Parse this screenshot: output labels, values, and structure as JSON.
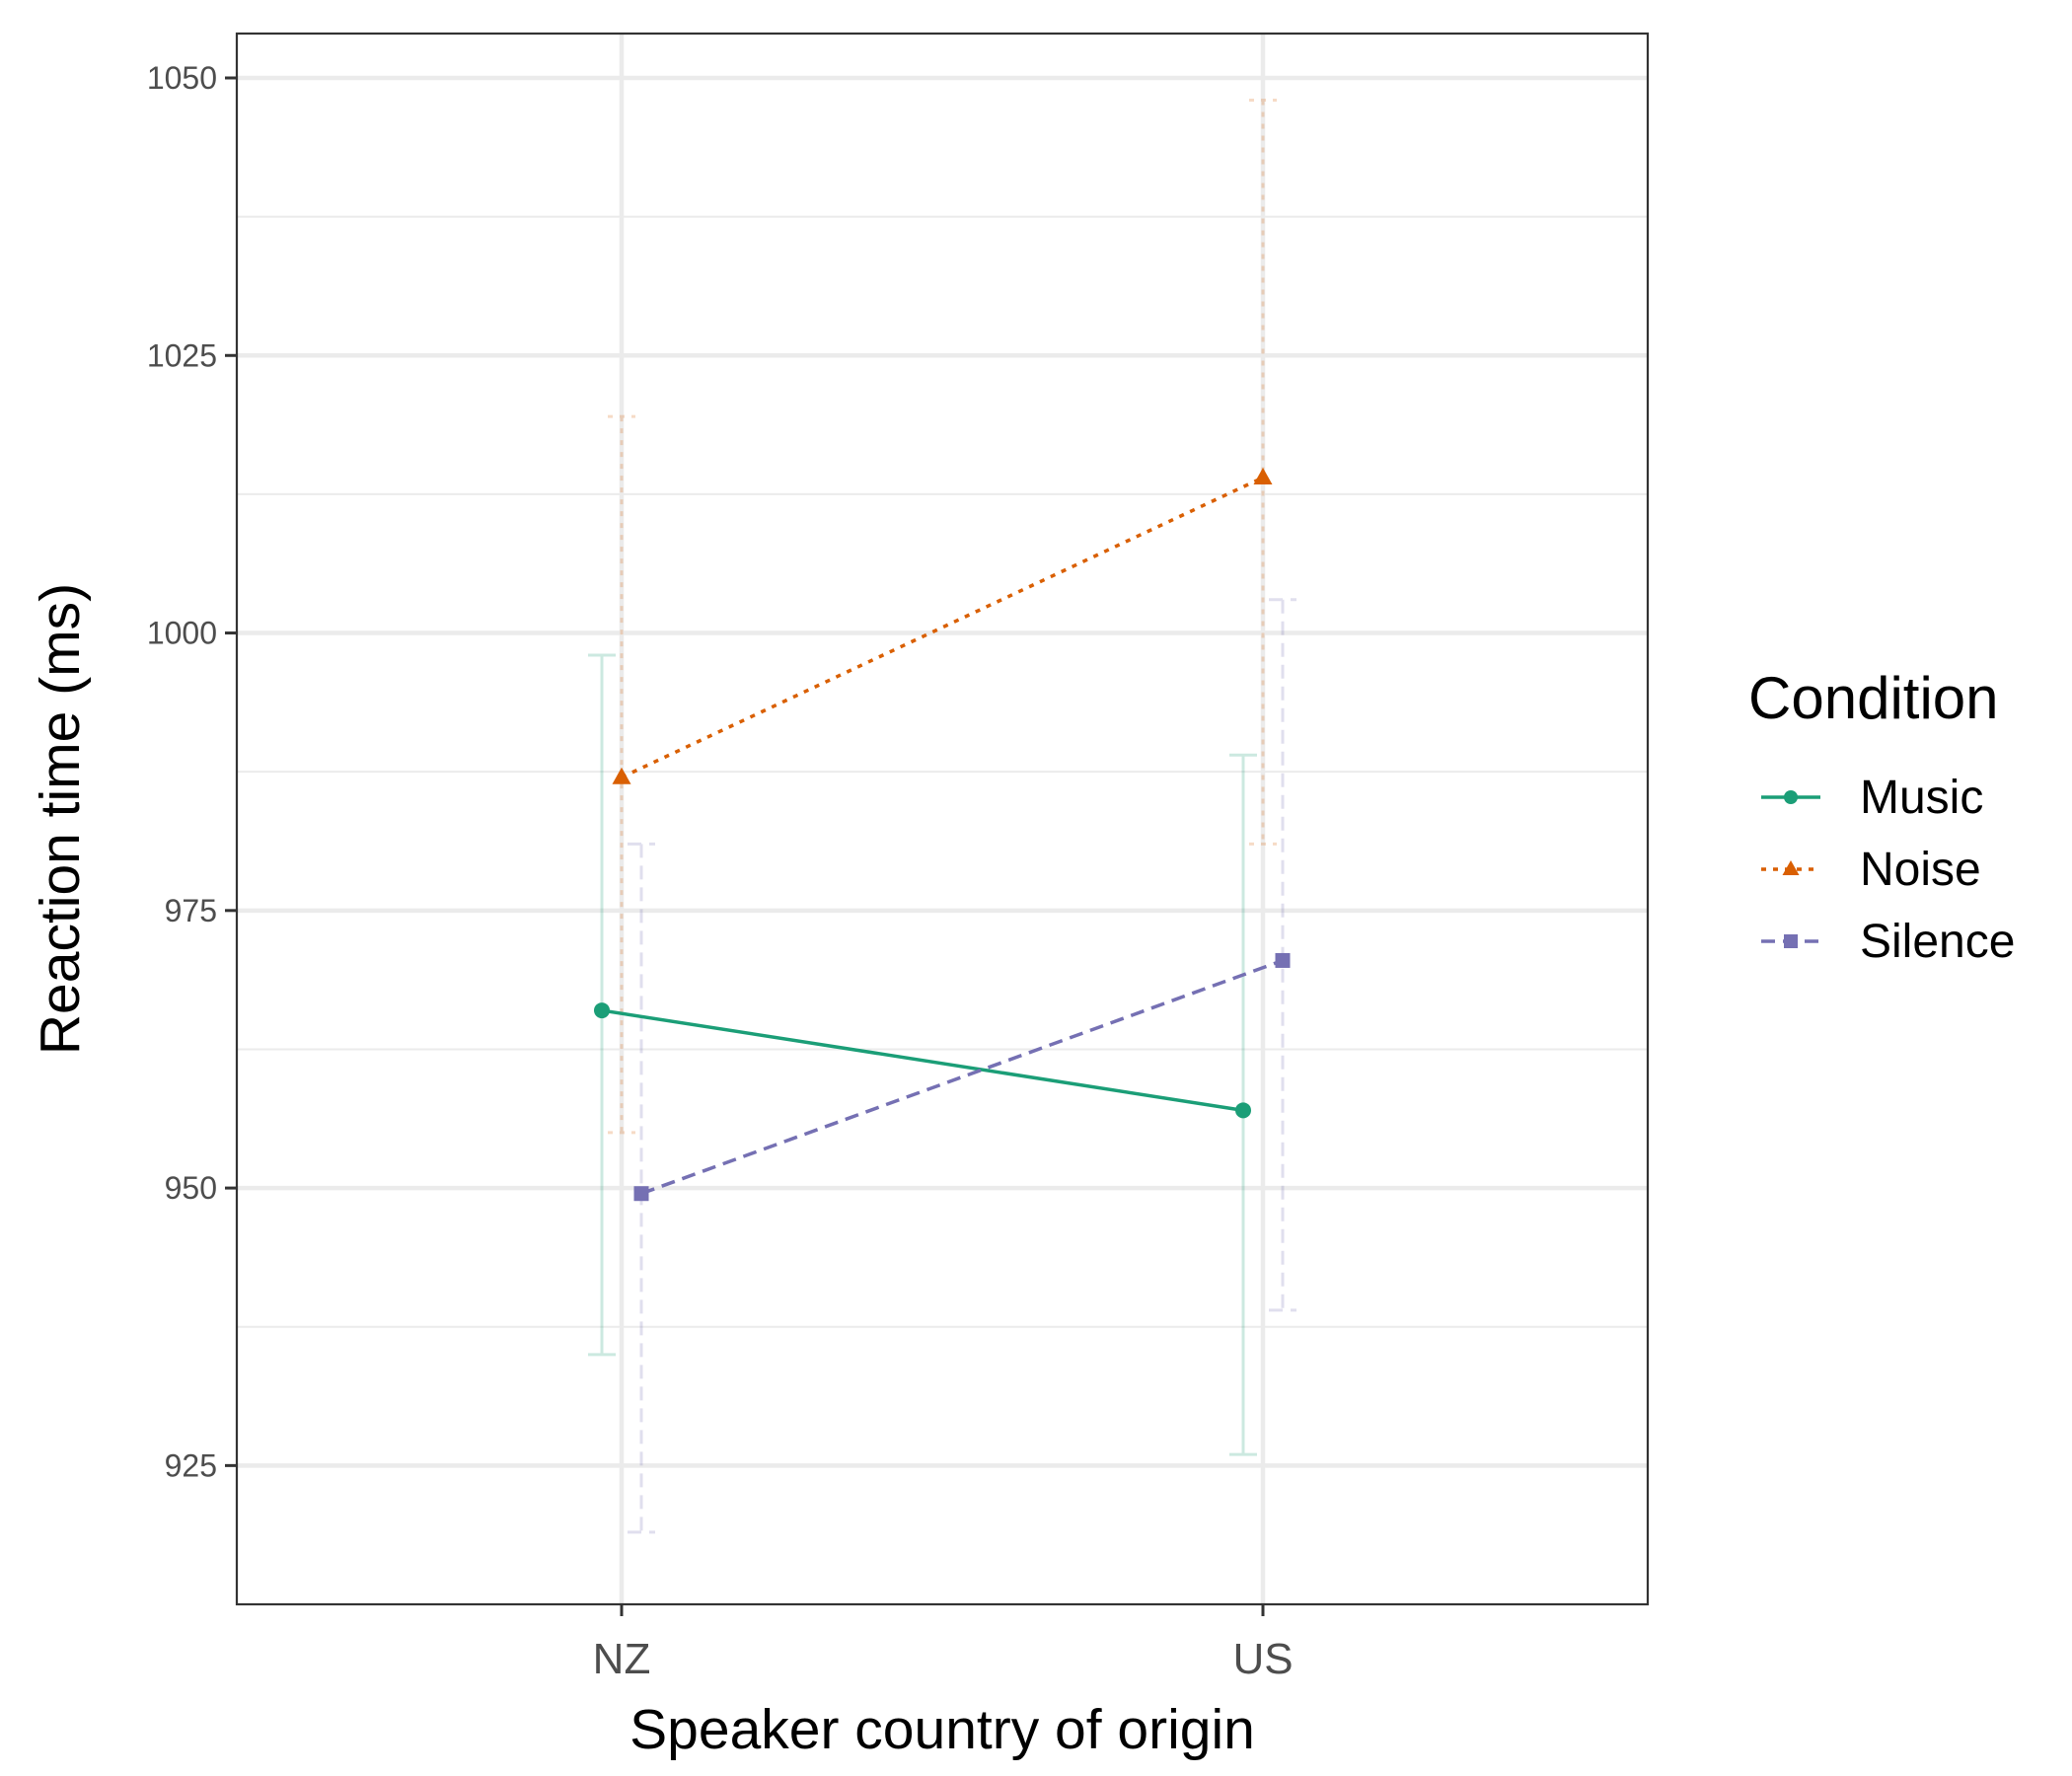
{
  "chart_data": {
    "type": "line",
    "title": "",
    "xlabel": "Speaker country of origin",
    "ylabel": "Reaction time (ms)",
    "categories": [
      "NZ",
      "US"
    ],
    "ylim": [
      912.5,
      1054
    ],
    "yticks": [
      925,
      950,
      975,
      1000,
      1025,
      1050
    ],
    "ytick_labels": [
      "925",
      "950",
      "975",
      "1000",
      "1025",
      "1050"
    ],
    "grid": true,
    "legend": {
      "title": "Condition",
      "placement": "right"
    },
    "series": [
      {
        "name": "Music",
        "color": "#1b9e77",
        "marker": "circle",
        "linestyle": "solid",
        "values": [
          966,
          957
        ],
        "error_low": [
          935,
          926
        ],
        "error_high": [
          998,
          989
        ]
      },
      {
        "name": "Noise",
        "color": "#d95f02",
        "marker": "triangle",
        "linestyle": "dotted",
        "values": [
          987,
          1014
        ],
        "error_low": [
          955,
          981
        ],
        "error_high": [
          1019.5,
          1048
        ]
      },
      {
        "name": "Silence",
        "color": "#7570b3",
        "marker": "square",
        "linestyle": "dashed",
        "values": [
          949.5,
          970.5
        ],
        "error_low": [
          919,
          939
        ],
        "error_high": [
          981,
          1003
        ]
      }
    ]
  }
}
